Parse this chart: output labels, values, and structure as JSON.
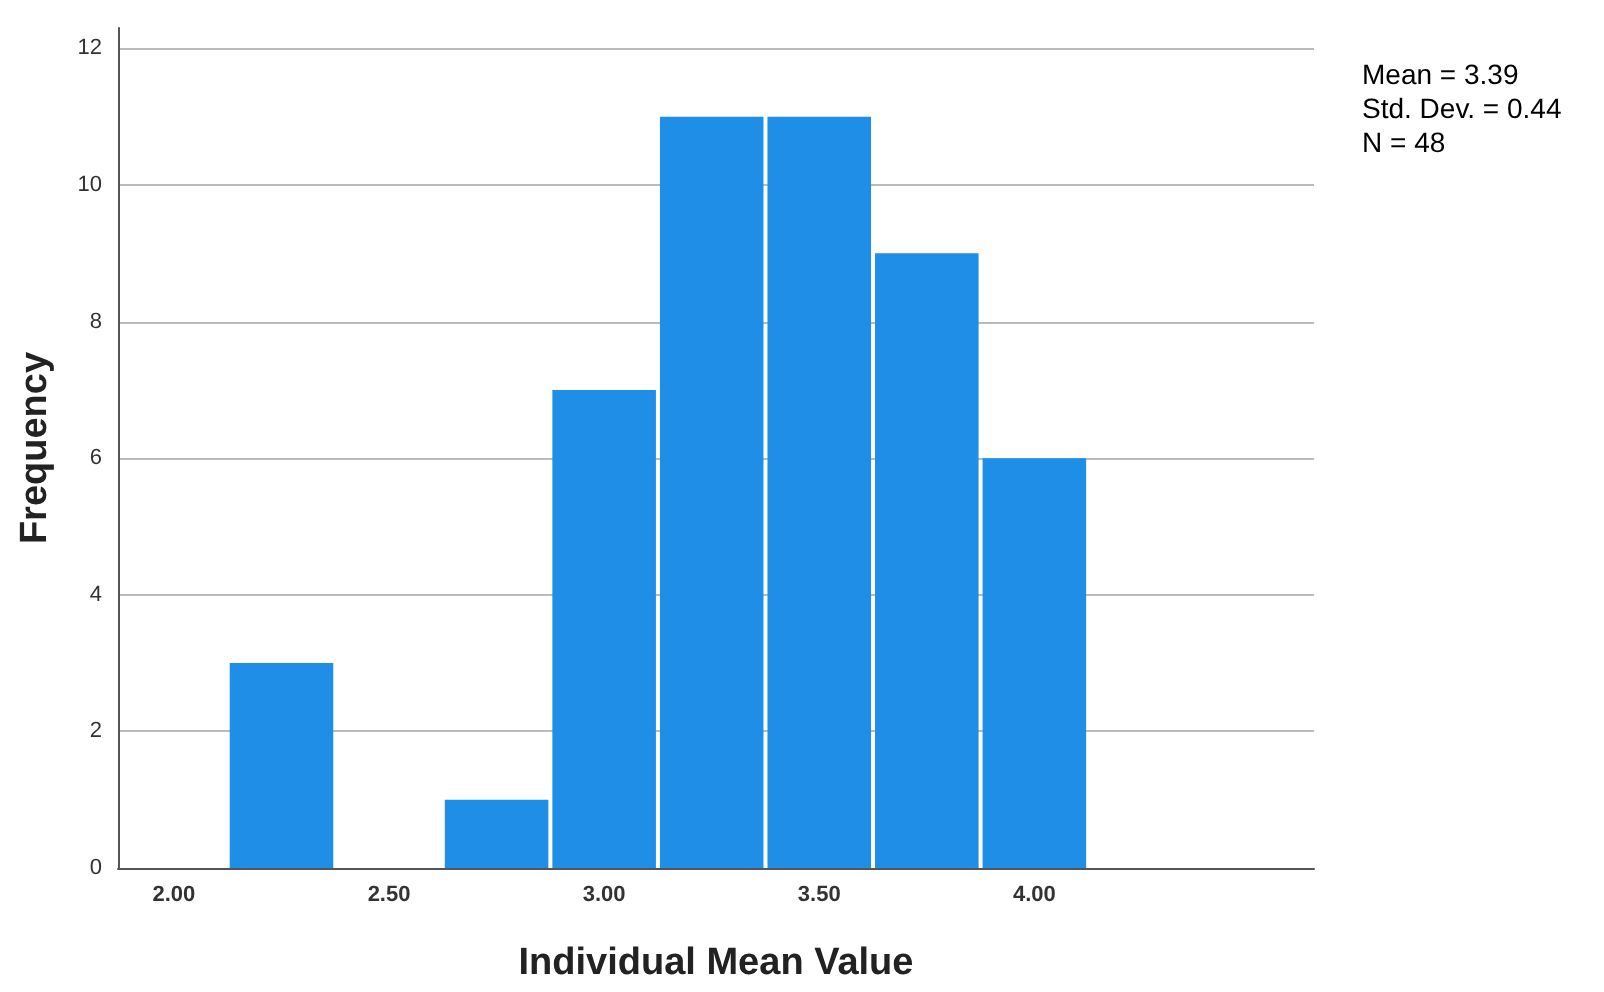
{
  "chart_data": {
    "type": "histogram",
    "xlabel": "Individual Mean Value",
    "ylabel": "Frequency",
    "bins": [
      2.125,
      2.375,
      2.625,
      2.875,
      3.125,
      3.375,
      3.625,
      3.875,
      4.125
    ],
    "values": [
      3,
      0,
      1,
      7,
      11,
      11,
      9,
      6
    ],
    "color": "#1e8ee6",
    "xlim": [
      1.87,
      4.65
    ],
    "xticks": [
      {
        "value": 2,
        "label": "2.00"
      },
      {
        "value": 2.5,
        "label": "2.50"
      },
      {
        "value": 3,
        "label": "3.00"
      },
      {
        "value": 3.5,
        "label": "3.50"
      },
      {
        "value": 4,
        "label": "4.00"
      }
    ],
    "ylim": [
      0,
      12.3
    ],
    "yticks": [
      0,
      2,
      4,
      6,
      8,
      10,
      12
    ],
    "grid": "y",
    "annotations": [
      "Mean = 3.39",
      "Std. Dev. = 0.44",
      "N = 48"
    ]
  }
}
